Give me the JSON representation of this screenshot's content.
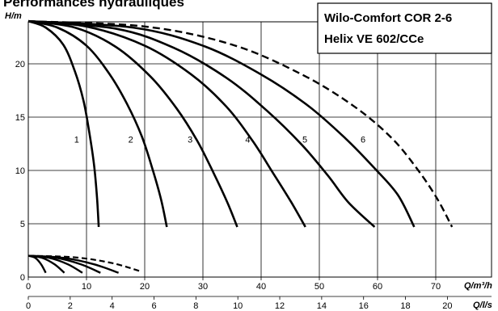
{
  "page_title": "Performances hydrauliques",
  "chart_data": {
    "type": "line",
    "legend": [
      "Wilo-Comfort COR 2-6",
      "Helix VE 602/CCe"
    ],
    "legend_placement": "top-right",
    "ylabel": "H/m",
    "xlabel_primary": "Q/m³/h",
    "xlabel_secondary": "Q/l/s",
    "xlim": [
      0,
      78
    ],
    "ylim": [
      0,
      24.5
    ],
    "grid": true,
    "x_ticks": [
      0,
      10,
      20,
      30,
      40,
      50,
      60,
      70
    ],
    "x2_ticks": [
      0,
      2,
      4,
      6,
      8,
      10,
      12,
      14,
      16,
      18,
      20
    ],
    "y_ticks": [
      0,
      5,
      10,
      15,
      20
    ],
    "series": [
      {
        "name": "1",
        "style": "solid",
        "points": [
          [
            0,
            24
          ],
          [
            3,
            23.4
          ],
          [
            6,
            21.8
          ],
          [
            8,
            19.3
          ],
          [
            9.5,
            16.5
          ],
          [
            10.5,
            13.5
          ],
          [
            11.3,
            10.5
          ],
          [
            11.8,
            7.5
          ],
          [
            12.1,
            4.7
          ]
        ]
      },
      {
        "name": "2",
        "style": "solid",
        "points": [
          [
            0,
            24
          ],
          [
            5,
            23.4
          ],
          [
            10,
            21.7
          ],
          [
            14,
            19.0
          ],
          [
            17,
            16.2
          ],
          [
            19.5,
            13.2
          ],
          [
            21.3,
            10.2
          ],
          [
            22.8,
            7.3
          ],
          [
            23.8,
            4.7
          ]
        ]
      },
      {
        "name": "3",
        "style": "solid",
        "points": [
          [
            0,
            24
          ],
          [
            8,
            23.4
          ],
          [
            15,
            21.6
          ],
          [
            21,
            18.8
          ],
          [
            25.5,
            15.8
          ],
          [
            29,
            12.8
          ],
          [
            31.8,
            9.8
          ],
          [
            34.2,
            7.0
          ],
          [
            35.9,
            4.7
          ]
        ]
      },
      {
        "name": "4",
        "style": "solid",
        "points": [
          [
            0,
            24
          ],
          [
            10,
            23.5
          ],
          [
            20,
            21.7
          ],
          [
            28,
            19.0
          ],
          [
            34,
            16.0
          ],
          [
            38.5,
            12.8
          ],
          [
            42,
            9.8
          ],
          [
            45.2,
            7.0
          ],
          [
            47.6,
            4.7
          ]
        ]
      },
      {
        "name": "5",
        "style": "solid",
        "points": [
          [
            0,
            24
          ],
          [
            15,
            23.3
          ],
          [
            25,
            21.5
          ],
          [
            34,
            18.7
          ],
          [
            41,
            15.6
          ],
          [
            47,
            12.4
          ],
          [
            51.5,
            9.5
          ],
          [
            55,
            7.0
          ],
          [
            59.5,
            4.7
          ]
        ]
      },
      {
        "name": "6",
        "style": "solid",
        "points": [
          [
            0,
            24
          ],
          [
            18,
            23.4
          ],
          [
            30,
            21.7
          ],
          [
            40,
            19.0
          ],
          [
            48,
            16.1
          ],
          [
            54.5,
            13.0
          ],
          [
            59.5,
            10.2
          ],
          [
            63.5,
            7.7
          ],
          [
            66.3,
            4.7
          ]
        ]
      },
      {
        "name": "",
        "style": "dashed",
        "points": [
          [
            0,
            24
          ],
          [
            20,
            23.5
          ],
          [
            35,
            21.8
          ],
          [
            47,
            19.0
          ],
          [
            56,
            16.0
          ],
          [
            62.5,
            13.0
          ],
          [
            67,
            10.0
          ],
          [
            70.3,
            7.3
          ],
          [
            72.8,
            4.7
          ]
        ]
      }
    ],
    "inset_series": [
      {
        "style": "solid",
        "points": [
          [
            0,
            2.0
          ],
          [
            1.2,
            1.8
          ],
          [
            2.2,
            1.2
          ],
          [
            3.0,
            0.4
          ]
        ]
      },
      {
        "style": "solid",
        "points": [
          [
            0,
            2.0
          ],
          [
            2.4,
            1.8
          ],
          [
            4.5,
            1.2
          ],
          [
            6.2,
            0.4
          ]
        ]
      },
      {
        "style": "solid",
        "points": [
          [
            0,
            2.0
          ],
          [
            3.6,
            1.8
          ],
          [
            6.8,
            1.2
          ],
          [
            9.3,
            0.4
          ]
        ]
      },
      {
        "style": "solid",
        "points": [
          [
            0,
            2.0
          ],
          [
            4.8,
            1.8
          ],
          [
            9.0,
            1.2
          ],
          [
            12.4,
            0.4
          ]
        ]
      },
      {
        "style": "solid",
        "points": [
          [
            0,
            2.0
          ],
          [
            6.0,
            1.8
          ],
          [
            11.3,
            1.2
          ],
          [
            15.5,
            0.4
          ]
        ]
      },
      {
        "style": "dashed",
        "points": [
          [
            0,
            2.0
          ],
          [
            8.0,
            1.85
          ],
          [
            14.5,
            1.3
          ],
          [
            19.5,
            0.5
          ]
        ]
      }
    ],
    "curve_labels": [
      {
        "text": "1",
        "x": 8.3,
        "y": 12.6
      },
      {
        "text": "2",
        "x": 17.6,
        "y": 12.6
      },
      {
        "text": "3",
        "x": 27.8,
        "y": 12.6
      },
      {
        "text": "4",
        "x": 37.7,
        "y": 12.6
      },
      {
        "text": "5",
        "x": 47.5,
        "y": 12.6
      },
      {
        "text": "6",
        "x": 57.5,
        "y": 12.6
      }
    ]
  }
}
